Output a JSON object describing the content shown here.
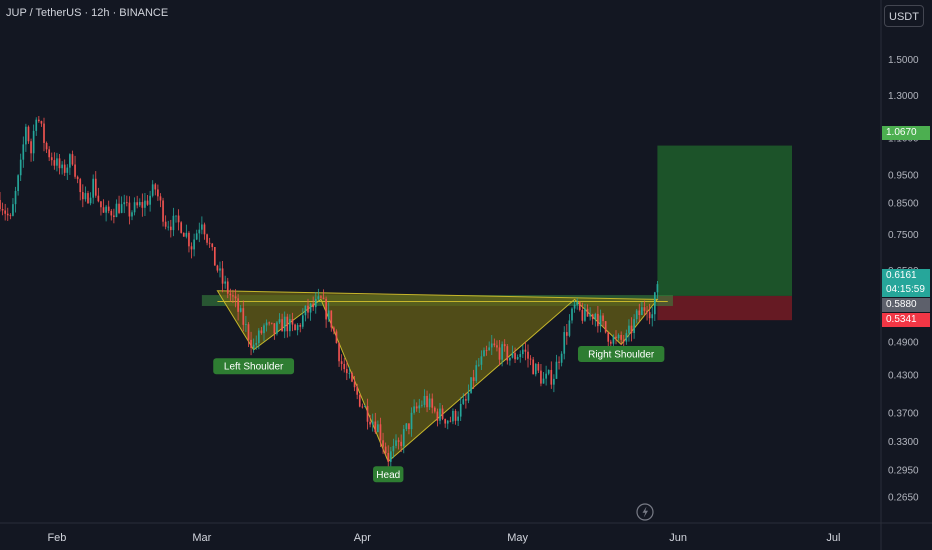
{
  "header": {
    "title": "JUP / TetherUS · 12h · BINANCE"
  },
  "currency_button": {
    "label": "USDT"
  },
  "price_tags": {
    "target": "1.0670",
    "current_price": "0.6161",
    "countdown": "04:15:59",
    "entry": "0.5880",
    "stop": "0.5341"
  },
  "colors": {
    "background": "#131722",
    "up": "#26a69a",
    "down": "#ef5350",
    "pattern_fill": "#6b6414",
    "neckline": "#c6b62b",
    "target_zone": "#1f5e2a",
    "stop_zone": "#701b24",
    "label_green": "#2e7d32",
    "stop_red": "#f23645",
    "entry_gray": "#5d606b"
  },
  "chart_data": {
    "type": "candlestick",
    "scale": "log",
    "ylim": [
      0.24,
      1.9
    ],
    "yticks": [
      1.5,
      1.3,
      1.1,
      0.95,
      0.85,
      0.75,
      0.65,
      0.565,
      0.49,
      0.43,
      0.37,
      0.33,
      0.295,
      0.265
    ],
    "ytick_labels": [
      "1.5000",
      "1.3000",
      "1.1000",
      "0.9500",
      "0.8500",
      "0.7500",
      "0.6500",
      "",
      "0.4900",
      "0.4300",
      "0.3700",
      "0.3300",
      "0.2950",
      "0.2650"
    ],
    "x_labels": [
      {
        "label": "Feb",
        "date": "2025-02-01"
      },
      {
        "label": "Mar",
        "date": "2025-03-01"
      },
      {
        "label": "Apr",
        "date": "2025-04-01"
      },
      {
        "label": "May",
        "date": "2025-05-01"
      },
      {
        "label": "Jun",
        "date": "2025-06-01"
      },
      {
        "label": "Jul",
        "date": "2025-07-01"
      }
    ],
    "x_range": [
      "2025-01-21",
      "2025-07-10"
    ],
    "price_path": [
      [
        "2025-01-21",
        0.86
      ],
      [
        "2025-01-23",
        0.79
      ],
      [
        "2025-01-25",
        0.98
      ],
      [
        "2025-01-26",
        1.16
      ],
      [
        "2025-01-27",
        1.04
      ],
      [
        "2025-01-28",
        1.22
      ],
      [
        "2025-01-30",
        1.05
      ],
      [
        "2025-02-02",
        0.96
      ],
      [
        "2025-02-04",
        1.02
      ],
      [
        "2025-02-06",
        0.84
      ],
      [
        "2025-02-08",
        0.92
      ],
      [
        "2025-02-10",
        0.81
      ],
      [
        "2025-02-13",
        0.84
      ],
      [
        "2025-02-15",
        0.82
      ],
      [
        "2025-02-18",
        0.85
      ],
      [
        "2025-02-20",
        0.9
      ],
      [
        "2025-02-22",
        0.79
      ],
      [
        "2025-02-25",
        0.78
      ],
      [
        "2025-02-27",
        0.72
      ],
      [
        "2025-03-01",
        0.8
      ],
      [
        "2025-03-03",
        0.69
      ],
      [
        "2025-03-05",
        0.62
      ],
      [
        "2025-03-07",
        0.58
      ],
      [
        "2025-03-09",
        0.53
      ],
      [
        "2025-03-11",
        0.48
      ],
      [
        "2025-03-13",
        0.52
      ],
      [
        "2025-03-15",
        0.51
      ],
      [
        "2025-03-17",
        0.53
      ],
      [
        "2025-03-19",
        0.51
      ],
      [
        "2025-03-21",
        0.55
      ],
      [
        "2025-03-24",
        0.575
      ],
      [
        "2025-03-26",
        0.53
      ],
      [
        "2025-03-28",
        0.45
      ],
      [
        "2025-03-30",
        0.41
      ],
      [
        "2025-04-02",
        0.37
      ],
      [
        "2025-04-04",
        0.35
      ],
      [
        "2025-04-06",
        0.31
      ],
      [
        "2025-04-08",
        0.325
      ],
      [
        "2025-04-11",
        0.37
      ],
      [
        "2025-04-13",
        0.39
      ],
      [
        "2025-04-15",
        0.37
      ],
      [
        "2025-04-18",
        0.36
      ],
      [
        "2025-04-21",
        0.385
      ],
      [
        "2025-04-23",
        0.44
      ],
      [
        "2025-04-26",
        0.48
      ],
      [
        "2025-04-28",
        0.47
      ],
      [
        "2025-04-30",
        0.46
      ],
      [
        "2025-05-02",
        0.475
      ],
      [
        "2025-05-04",
        0.445
      ],
      [
        "2025-05-06",
        0.42
      ],
      [
        "2025-05-08",
        0.43
      ],
      [
        "2025-05-10",
        0.5
      ],
      [
        "2025-05-12",
        0.56
      ],
      [
        "2025-05-14",
        0.54
      ],
      [
        "2025-05-16",
        0.55
      ],
      [
        "2025-05-18",
        0.51
      ],
      [
        "2025-05-20",
        0.49
      ],
      [
        "2025-05-22",
        0.495
      ],
      [
        "2025-05-24",
        0.54
      ],
      [
        "2025-05-26",
        0.57
      ],
      [
        "2025-05-27",
        0.545
      ],
      [
        "2025-05-28",
        0.6161
      ]
    ],
    "neckline": 0.575,
    "neckline_zone": [
      0.565,
      0.59
    ],
    "pattern_points": [
      [
        "2025-03-04",
        0.6
      ],
      [
        "2025-03-11",
        0.475
      ],
      [
        "2025-03-24",
        0.58
      ],
      [
        "2025-04-06",
        0.305
      ],
      [
        "2025-05-12",
        0.58
      ],
      [
        "2025-05-21",
        0.485
      ],
      [
        "2025-05-28",
        0.58
      ]
    ],
    "position": {
      "start": "2025-05-28",
      "end": "2025-06-23",
      "target": 1.067,
      "entry": 0.588,
      "stop": 0.5341
    },
    "annotations": [
      {
        "text": "Left Shoulder",
        "date": "2025-03-11",
        "price": 0.445
      },
      {
        "text": "Head",
        "date": "2025-04-06",
        "price": 0.29
      },
      {
        "text": "Right Shoulder",
        "date": "2025-05-21",
        "price": 0.467
      }
    ]
  }
}
